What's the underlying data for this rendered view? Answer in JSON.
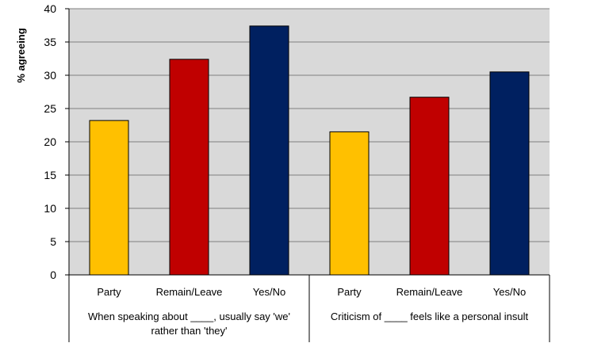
{
  "chart_data": {
    "type": "bar",
    "ylabel": "% agreeing",
    "xlabel": "",
    "ylim": [
      0,
      40
    ],
    "yticks": [
      0,
      5,
      10,
      15,
      20,
      25,
      30,
      35,
      40
    ],
    "grid": true,
    "legend": "none",
    "groups": [
      {
        "label_lines": [
          "When speaking about ____, usually say 'we'",
          "rather than 'they'"
        ],
        "categories": [
          "Party",
          "Remain/Leave",
          "Yes/No"
        ],
        "values": [
          23.2,
          32.4,
          37.4
        ]
      },
      {
        "label_lines": [
          "Criticism of ____ feels like a personal insult"
        ],
        "categories": [
          "Party",
          "Remain/Leave",
          "Yes/No"
        ],
        "values": [
          21.5,
          26.7,
          30.5
        ]
      }
    ],
    "colors": {
      "Party": "#FFC000",
      "Remain/Leave": "#C00000",
      "Yes/No": "#002060",
      "plot_background": "#D9D9D9",
      "gridline": "#7f7f7f"
    }
  }
}
